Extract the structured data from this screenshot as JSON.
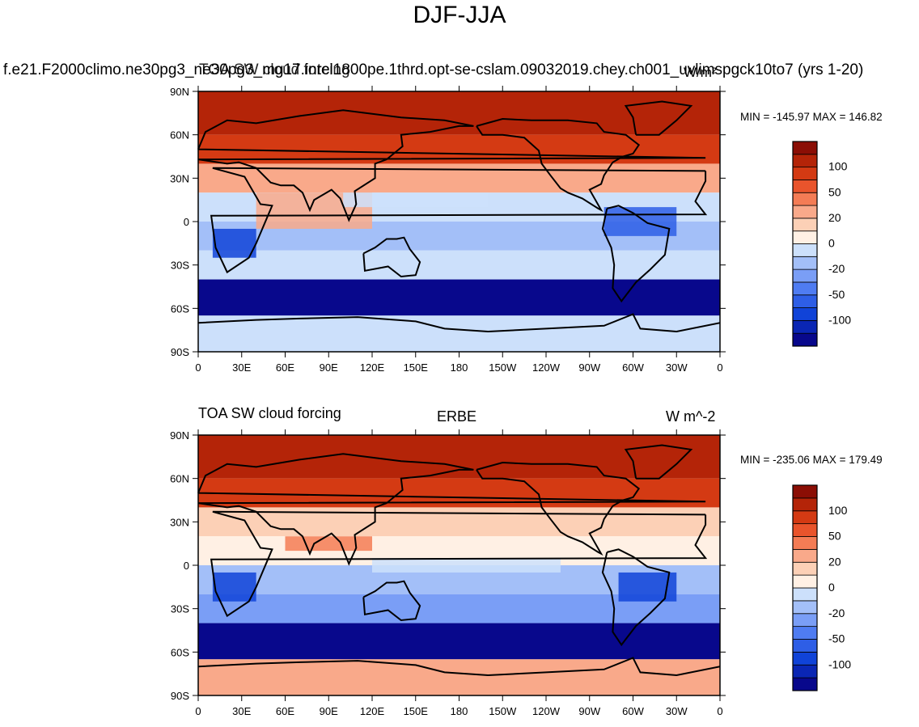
{
  "title": "DJF-JJA",
  "colors": {
    "ocean_red_1": "#fde0d0",
    "land_line": "#000000",
    "scale": [
      "#08088c",
      "#0a26b4",
      "#1043d8",
      "#2e5ee6",
      "#4f7cf2",
      "#7a9ef6",
      "#a3bff8",
      "#cce0fb",
      "#fff0e4",
      "#fcd0b6",
      "#f9a98a",
      "#f47c55",
      "#e9542c",
      "#d43a13",
      "#b42408",
      "#8b0e05"
    ]
  },
  "chart_data": [
    {
      "type": "heatmap",
      "panel": "top",
      "left_title": "f.e21.F2000climo.ne30pg3_ne30pg3_mg17.intel1800pe.1thrd.opt-se-cslam.09032019.chey.ch001_uvlimspgck10to7 (yrs 1-20)",
      "center_title": "TOA SW cloud forcing",
      "right_title": "W/m²",
      "min_max": "MIN = -145.97 MAX = 146.82",
      "x_ticks": [
        "0",
        "30E",
        "60E",
        "90E",
        "120E",
        "150E",
        "180",
        "150W",
        "120W",
        "90W",
        "60W",
        "30W",
        "0"
      ],
      "y_ticks": [
        "90N",
        "60N",
        "30N",
        "0",
        "30S",
        "60S",
        "90S"
      ],
      "colorbar_labels": [
        "100",
        "50",
        "20",
        "0",
        "-20",
        "-50",
        "-100"
      ],
      "zones": [
        {
          "lat": [
            60,
            90
          ],
          "value": 90
        },
        {
          "lat": [
            40,
            60
          ],
          "value": 70
        },
        {
          "lat": [
            20,
            40
          ],
          "value": 30
        },
        {
          "lat": [
            0,
            20
          ],
          "value": -5
        },
        {
          "lat": [
            -20,
            0
          ],
          "value": -30
        },
        {
          "lat": [
            -40,
            -20
          ],
          "value": -15
        },
        {
          "lat": [
            -65,
            -40
          ],
          "value": -120
        },
        {
          "lat": [
            -90,
            -65
          ],
          "value": -5
        }
      ]
    },
    {
      "type": "heatmap",
      "panel": "bottom",
      "left_title": "TOA SW cloud forcing",
      "center_title": "ERBE",
      "right_title": "W m^-2",
      "min_max": "MIN = -235.06 MAX = 179.49",
      "x_ticks": [
        "0",
        "30E",
        "60E",
        "90E",
        "120E",
        "150E",
        "180",
        "150W",
        "120W",
        "90W",
        "60W",
        "30W",
        "0"
      ],
      "y_ticks": [
        "90N",
        "60N",
        "30N",
        "0",
        "30S",
        "60S",
        "90S"
      ],
      "colorbar_labels": [
        "100",
        "50",
        "20",
        "0",
        "-20",
        "-50",
        "-100"
      ],
      "zones": [
        {
          "lat": [
            60,
            90
          ],
          "value": 80
        },
        {
          "lat": [
            40,
            60
          ],
          "value": 75
        },
        {
          "lat": [
            20,
            40
          ],
          "value": 20
        },
        {
          "lat": [
            0,
            20
          ],
          "value": 10
        },
        {
          "lat": [
            -20,
            0
          ],
          "value": -25
        },
        {
          "lat": [
            -40,
            -20
          ],
          "value": -40
        },
        {
          "lat": [
            -65,
            -40
          ],
          "value": -130
        },
        {
          "lat": [
            -90,
            -65
          ],
          "value": 30
        }
      ]
    }
  ]
}
